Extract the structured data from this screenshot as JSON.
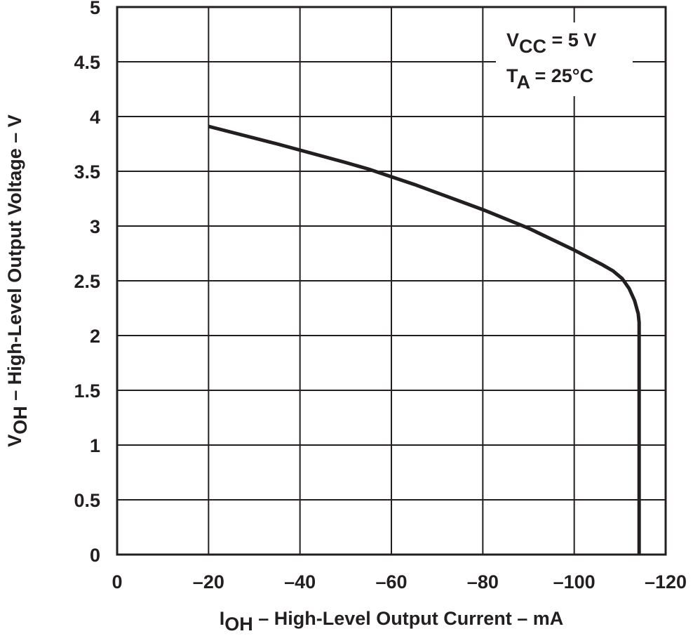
{
  "chart_data": {
    "type": "line",
    "xlabel": {
      "main": "I",
      "sub": "OH",
      "rest": " – High-Level Output Current – mA"
    },
    "ylabel": {
      "main": "V",
      "sub": "OH",
      "rest": " – High-Level Output Voltage – V"
    },
    "xlim": [
      0,
      -120
    ],
    "ylim": [
      0,
      5
    ],
    "xticks": [
      0,
      -20,
      -40,
      -60,
      -80,
      -100,
      -120
    ],
    "xtick_labels": [
      "0",
      "–20",
      "–40",
      "–60",
      "–80",
      "–100",
      "–120"
    ],
    "yticks": [
      0,
      0.5,
      1,
      1.5,
      2,
      2.5,
      3,
      3.5,
      4,
      4.5,
      5
    ],
    "ytick_labels": [
      "0",
      "0.5",
      "1",
      "1.5",
      "2",
      "2.5",
      "3",
      "3.5",
      "4",
      "4.5",
      "5"
    ],
    "grid": true,
    "annotations": [
      {
        "main": "V",
        "sub": "CC",
        "rest": " = 5 V"
      },
      {
        "main": "T",
        "sub": "A",
        "rest": " = 25°C"
      }
    ],
    "annotation_placement": "top-right",
    "series": [
      {
        "x": [
          -20,
          -35,
          -50,
          -55,
          -65,
          -80,
          -90,
          -100,
          -106,
          -108.5,
          -110.5,
          -112,
          -113.2,
          -114,
          -114.2,
          -114.2
        ],
        "y": [
          3.91,
          3.75,
          3.58,
          3.52,
          3.38,
          3.15,
          2.98,
          2.78,
          2.65,
          2.59,
          2.52,
          2.43,
          2.32,
          2.2,
          2.12,
          0
        ],
        "color": "#231f20"
      }
    ]
  }
}
